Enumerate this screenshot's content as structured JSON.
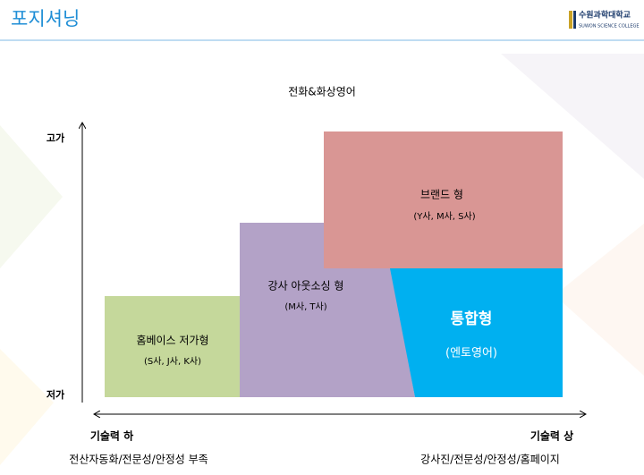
{
  "header": {
    "title": "포지셔닝",
    "logo_name": "수원과학대학교",
    "logo_subtitle": "SUWON SCIENCE COLLEGE"
  },
  "diagram": {
    "heading": "전화&화상영어",
    "y_axis": {
      "top": "고가",
      "bottom": "저가"
    },
    "x_axis": {
      "left": "기술력 하",
      "right": "기술력 상",
      "left_note": "전산자동화/전문성/안정성 부족",
      "right_note": "강사진/전문성/안정성/홈페이지"
    },
    "nodes": [
      {
        "label": "홈베이스 저가형",
        "sub": "(S사, J사, K사)"
      },
      {
        "label": "강사 아웃소싱 형",
        "sub": "(M사, T사)"
      },
      {
        "label": "브랜드 형",
        "sub": "(Y사, M사, S사)"
      },
      {
        "label": "통합형",
        "sub": "(엔토영어)"
      }
    ]
  }
}
